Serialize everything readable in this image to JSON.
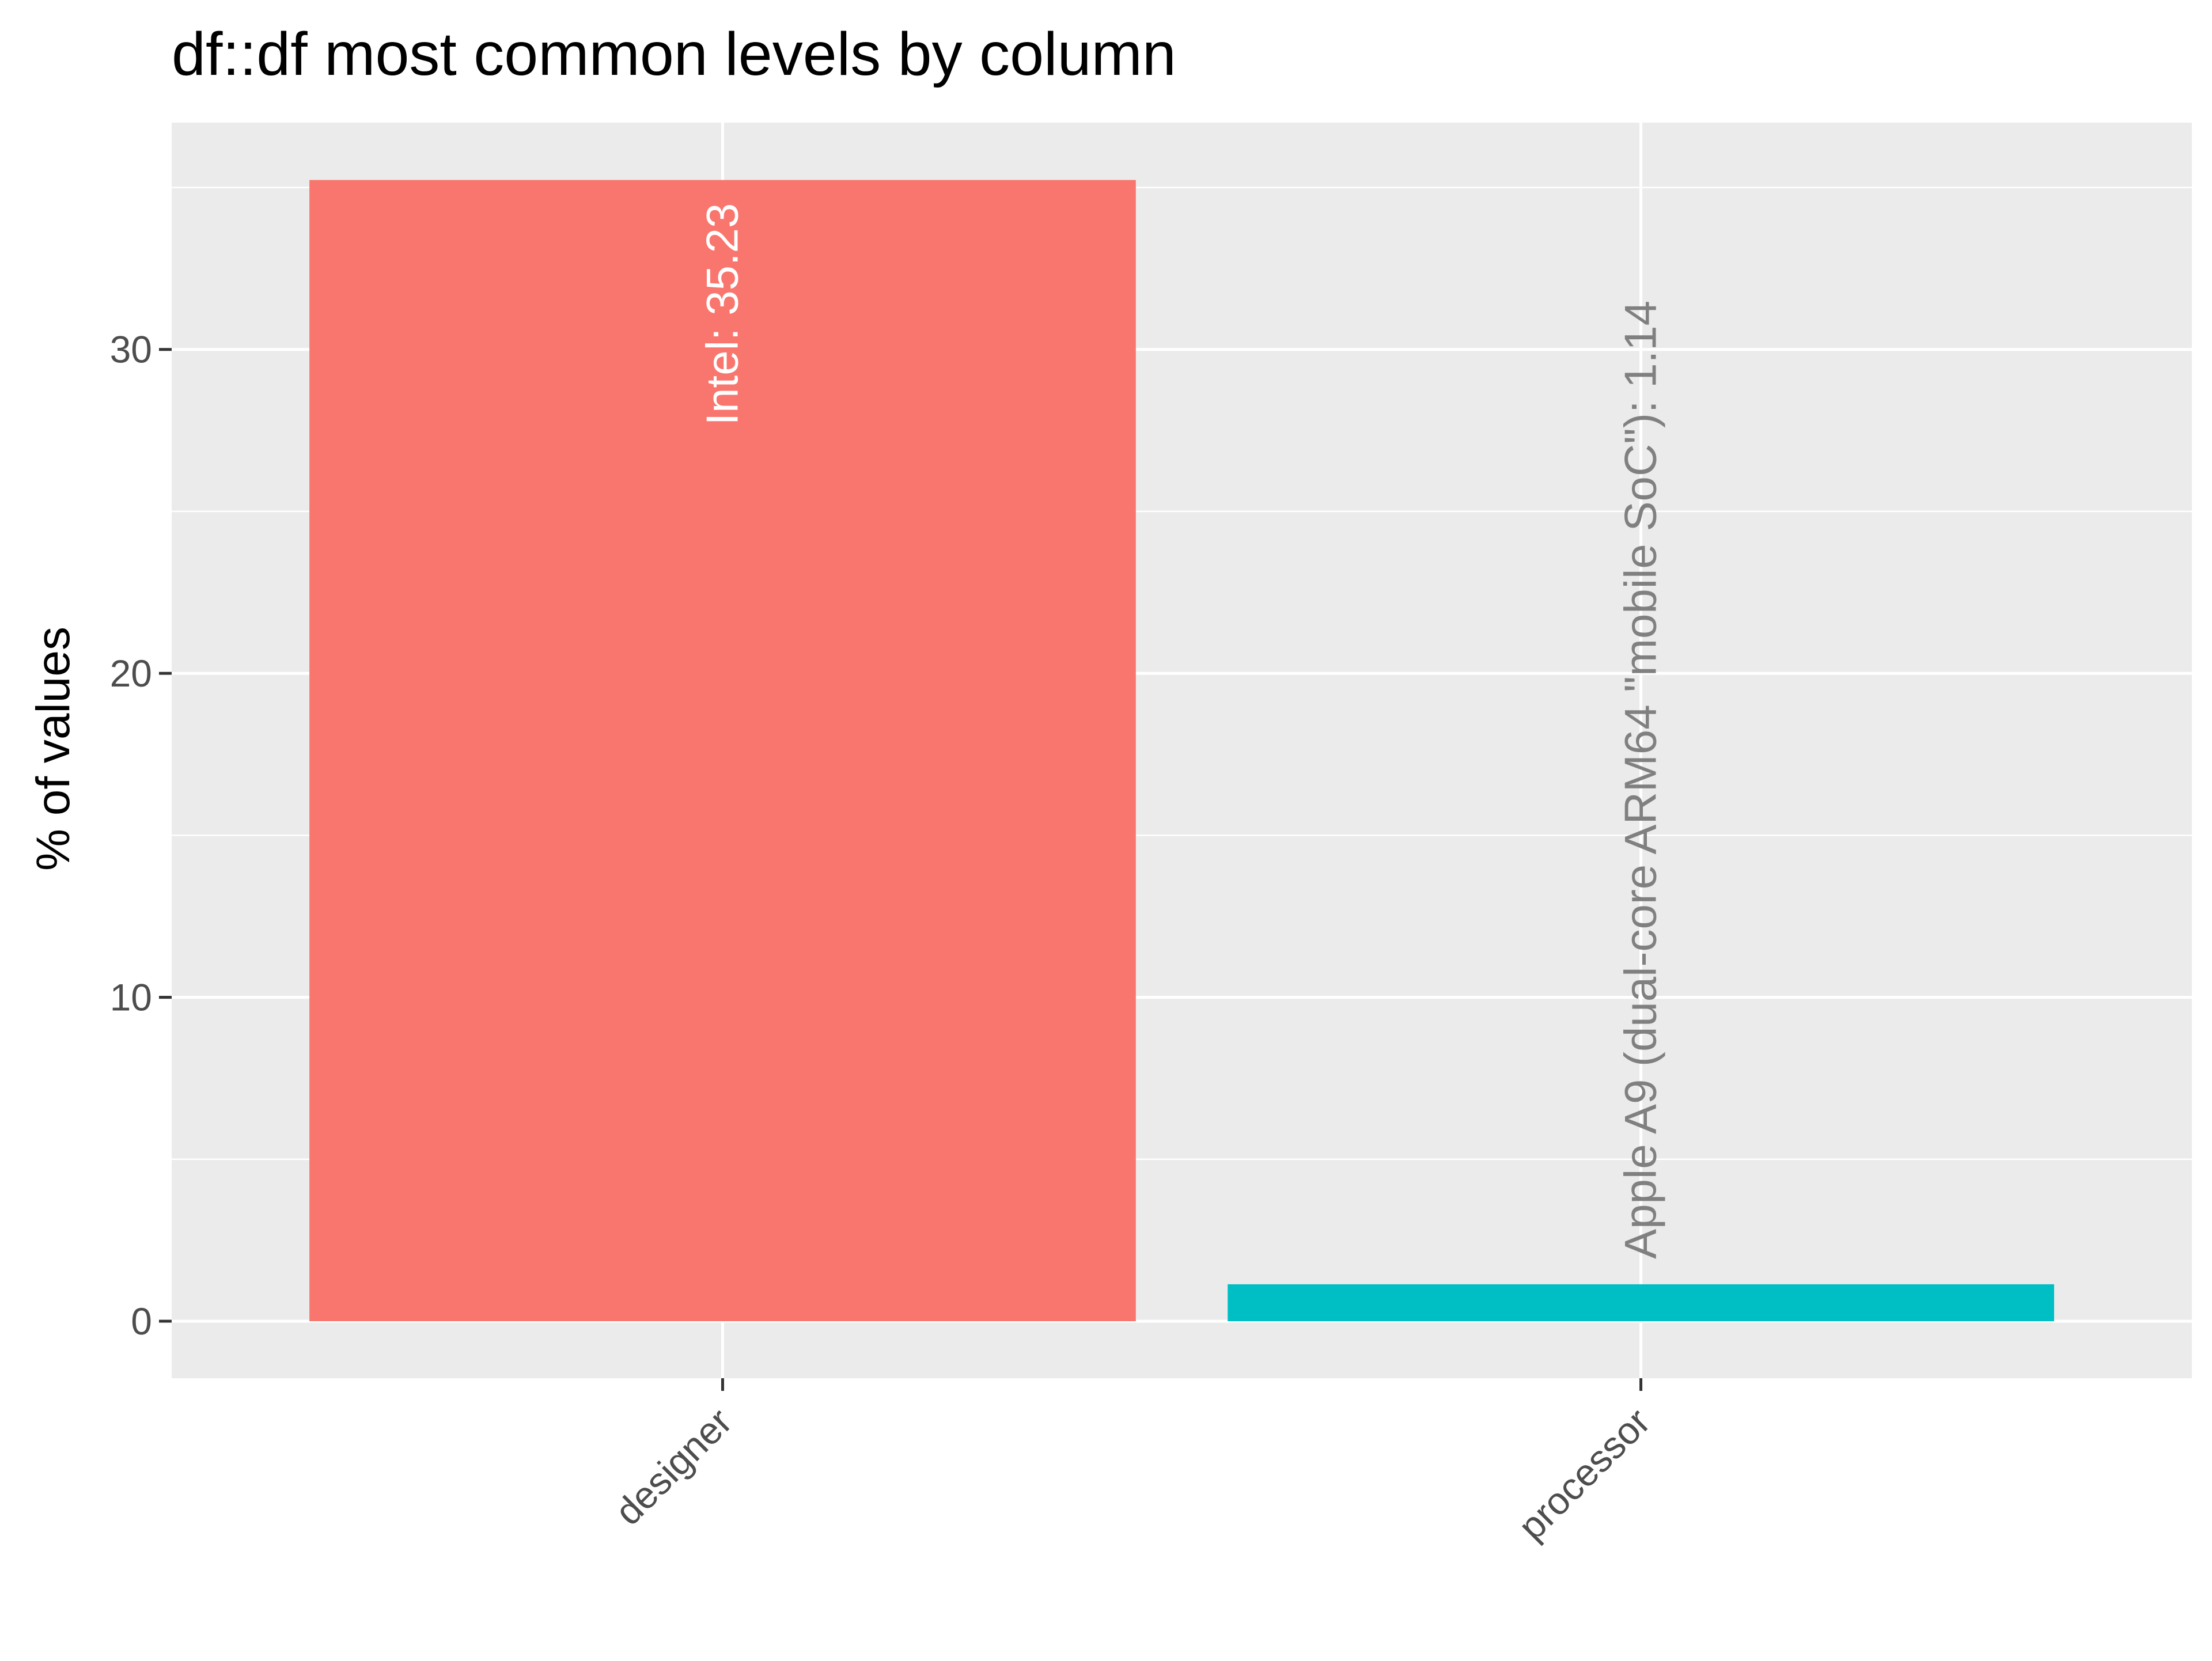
{
  "chart_data": {
    "type": "bar",
    "title": "df::df most common levels by column",
    "xlabel": "",
    "ylabel": "% of values",
    "categories": [
      "designer",
      "processor"
    ],
    "values": [
      35.23,
      1.14
    ],
    "bar_labels": [
      "Intel:  35.23",
      "Apple A9 (dual-core ARM64 \"mobile SoC\"):  1.14"
    ],
    "bar_colors": [
      "#F8766D",
      "#00BFC4"
    ],
    "bar_label_colors": [
      "#FFFFFF",
      "#808080"
    ],
    "ylim": [
      -1.76,
      37.0
    ],
    "yticks": [
      0,
      10,
      20,
      30
    ],
    "ytick_labels": [
      "0",
      "10",
      "20",
      "30"
    ],
    "grid": true,
    "legend": "none",
    "panel_background": "#EBEBEB",
    "grid_color": "#FFFFFF"
  }
}
